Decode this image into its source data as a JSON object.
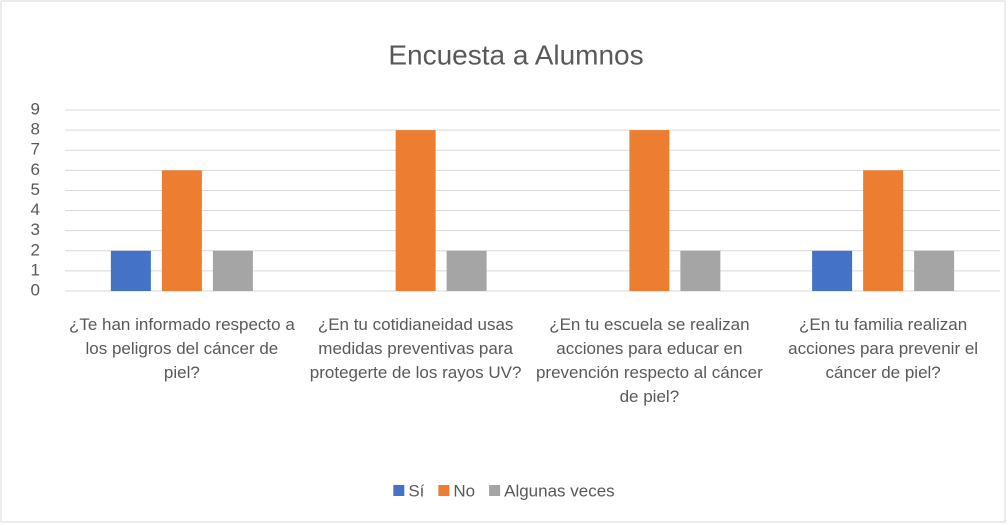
{
  "chart_data": {
    "type": "bar",
    "title": "Encuesta a Alumnos",
    "categories": [
      "¿Te han informado respecto a los peligros del cáncer de piel?",
      "¿En tu cotidianeidad usas medidas preventivas para protegerte de los rayos UV?",
      "¿En tu escuela se realizan acciones para educar en prevención respecto al cáncer de piel?",
      "¿En tu familia realizan acciones para prevenir el cáncer de piel?"
    ],
    "series": [
      {
        "name": "Sí",
        "color": "#4472c4",
        "values": [
          2,
          0,
          0,
          2
        ]
      },
      {
        "name": "No",
        "color": "#ed7d31",
        "values": [
          6,
          8,
          8,
          6
        ]
      },
      {
        "name": "Algunas veces",
        "color": "#a5a5a5",
        "values": [
          2,
          2,
          2,
          2
        ]
      }
    ],
    "ylim": [
      0,
      9
    ],
    "yticks": [
      0,
      1,
      2,
      3,
      4,
      5,
      6,
      7,
      8,
      9
    ],
    "grid": true,
    "legend": "bottom"
  }
}
